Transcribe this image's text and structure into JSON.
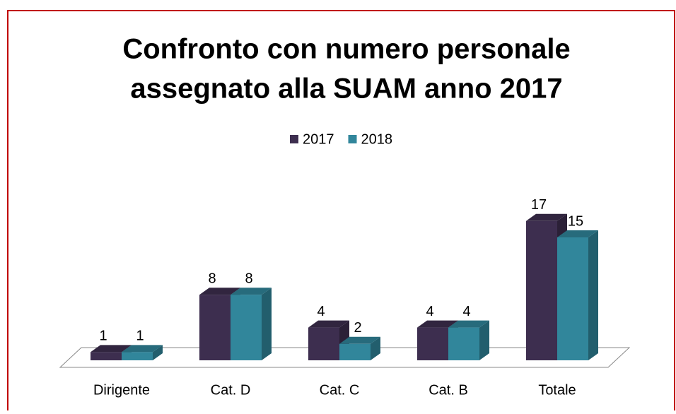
{
  "chart_data": {
    "type": "bar3d",
    "title": [
      "Confronto con numero personale",
      "assegnato alla SUAM anno 2017"
    ],
    "categories": [
      "Dirigente",
      "Cat. D",
      "Cat. C",
      "Cat. B",
      "Totale"
    ],
    "series": [
      {
        "name": "2017",
        "color": "#3d2e4f",
        "values": [
          1,
          8,
          4,
          4,
          17
        ]
      },
      {
        "name": "2018",
        "color": "#31869b",
        "values": [
          1,
          8,
          2,
          4,
          15
        ]
      }
    ],
    "legend": "top"
  }
}
